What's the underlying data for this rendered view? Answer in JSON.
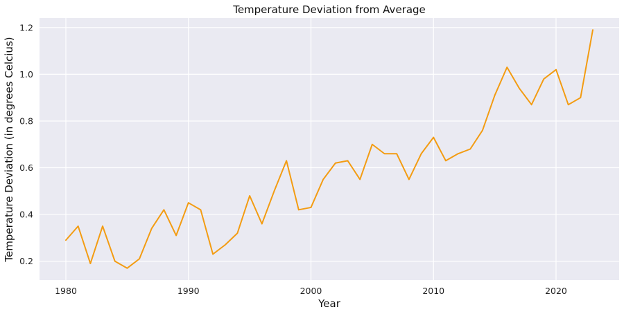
{
  "chart_data": {
    "type": "line",
    "title": "Temperature Deviation from Average",
    "xlabel": "Year",
    "ylabel": "Temperature Deviation (in degrees Celcius)",
    "xlim": [
      1977.85,
      2025.15
    ],
    "ylim": [
      0.119,
      1.241
    ],
    "x_ticks": [
      1980,
      1990,
      2000,
      2010,
      2020
    ],
    "y_ticks": [
      0.2,
      0.4,
      0.6,
      0.8,
      1.0,
      1.2
    ],
    "x_tick_labels": [
      "1980",
      "1990",
      "2000",
      "2010",
      "2020"
    ],
    "y_tick_labels": [
      "0.2",
      "0.4",
      "0.6",
      "0.8",
      "1.0",
      "1.2"
    ],
    "grid": true,
    "legend": "none",
    "colors": {
      "background": "#eaeaf2",
      "grid": "#ffffff",
      "line": "#f39c12"
    },
    "x": [
      1980,
      1981,
      1982,
      1983,
      1984,
      1985,
      1986,
      1987,
      1988,
      1989,
      1990,
      1991,
      1992,
      1993,
      1994,
      1995,
      1996,
      1997,
      1998,
      1999,
      2000,
      2001,
      2002,
      2003,
      2004,
      2005,
      2006,
      2007,
      2008,
      2009,
      2010,
      2011,
      2012,
      2013,
      2014,
      2015,
      2016,
      2017,
      2018,
      2019,
      2020,
      2021,
      2022,
      2023
    ],
    "series": [
      {
        "values": [
          0.29,
          0.35,
          0.19,
          0.35,
          0.2,
          0.17,
          0.21,
          0.34,
          0.42,
          0.31,
          0.45,
          0.42,
          0.23,
          0.27,
          0.32,
          0.48,
          0.36,
          0.5,
          0.63,
          0.42,
          0.43,
          0.55,
          0.62,
          0.63,
          0.55,
          0.7,
          0.66,
          0.66,
          0.55,
          0.66,
          0.73,
          0.63,
          0.66,
          0.68,
          0.76,
          0.91,
          1.03,
          0.94,
          0.87,
          0.98,
          1.02,
          0.87,
          0.9,
          1.19
        ]
      }
    ]
  }
}
